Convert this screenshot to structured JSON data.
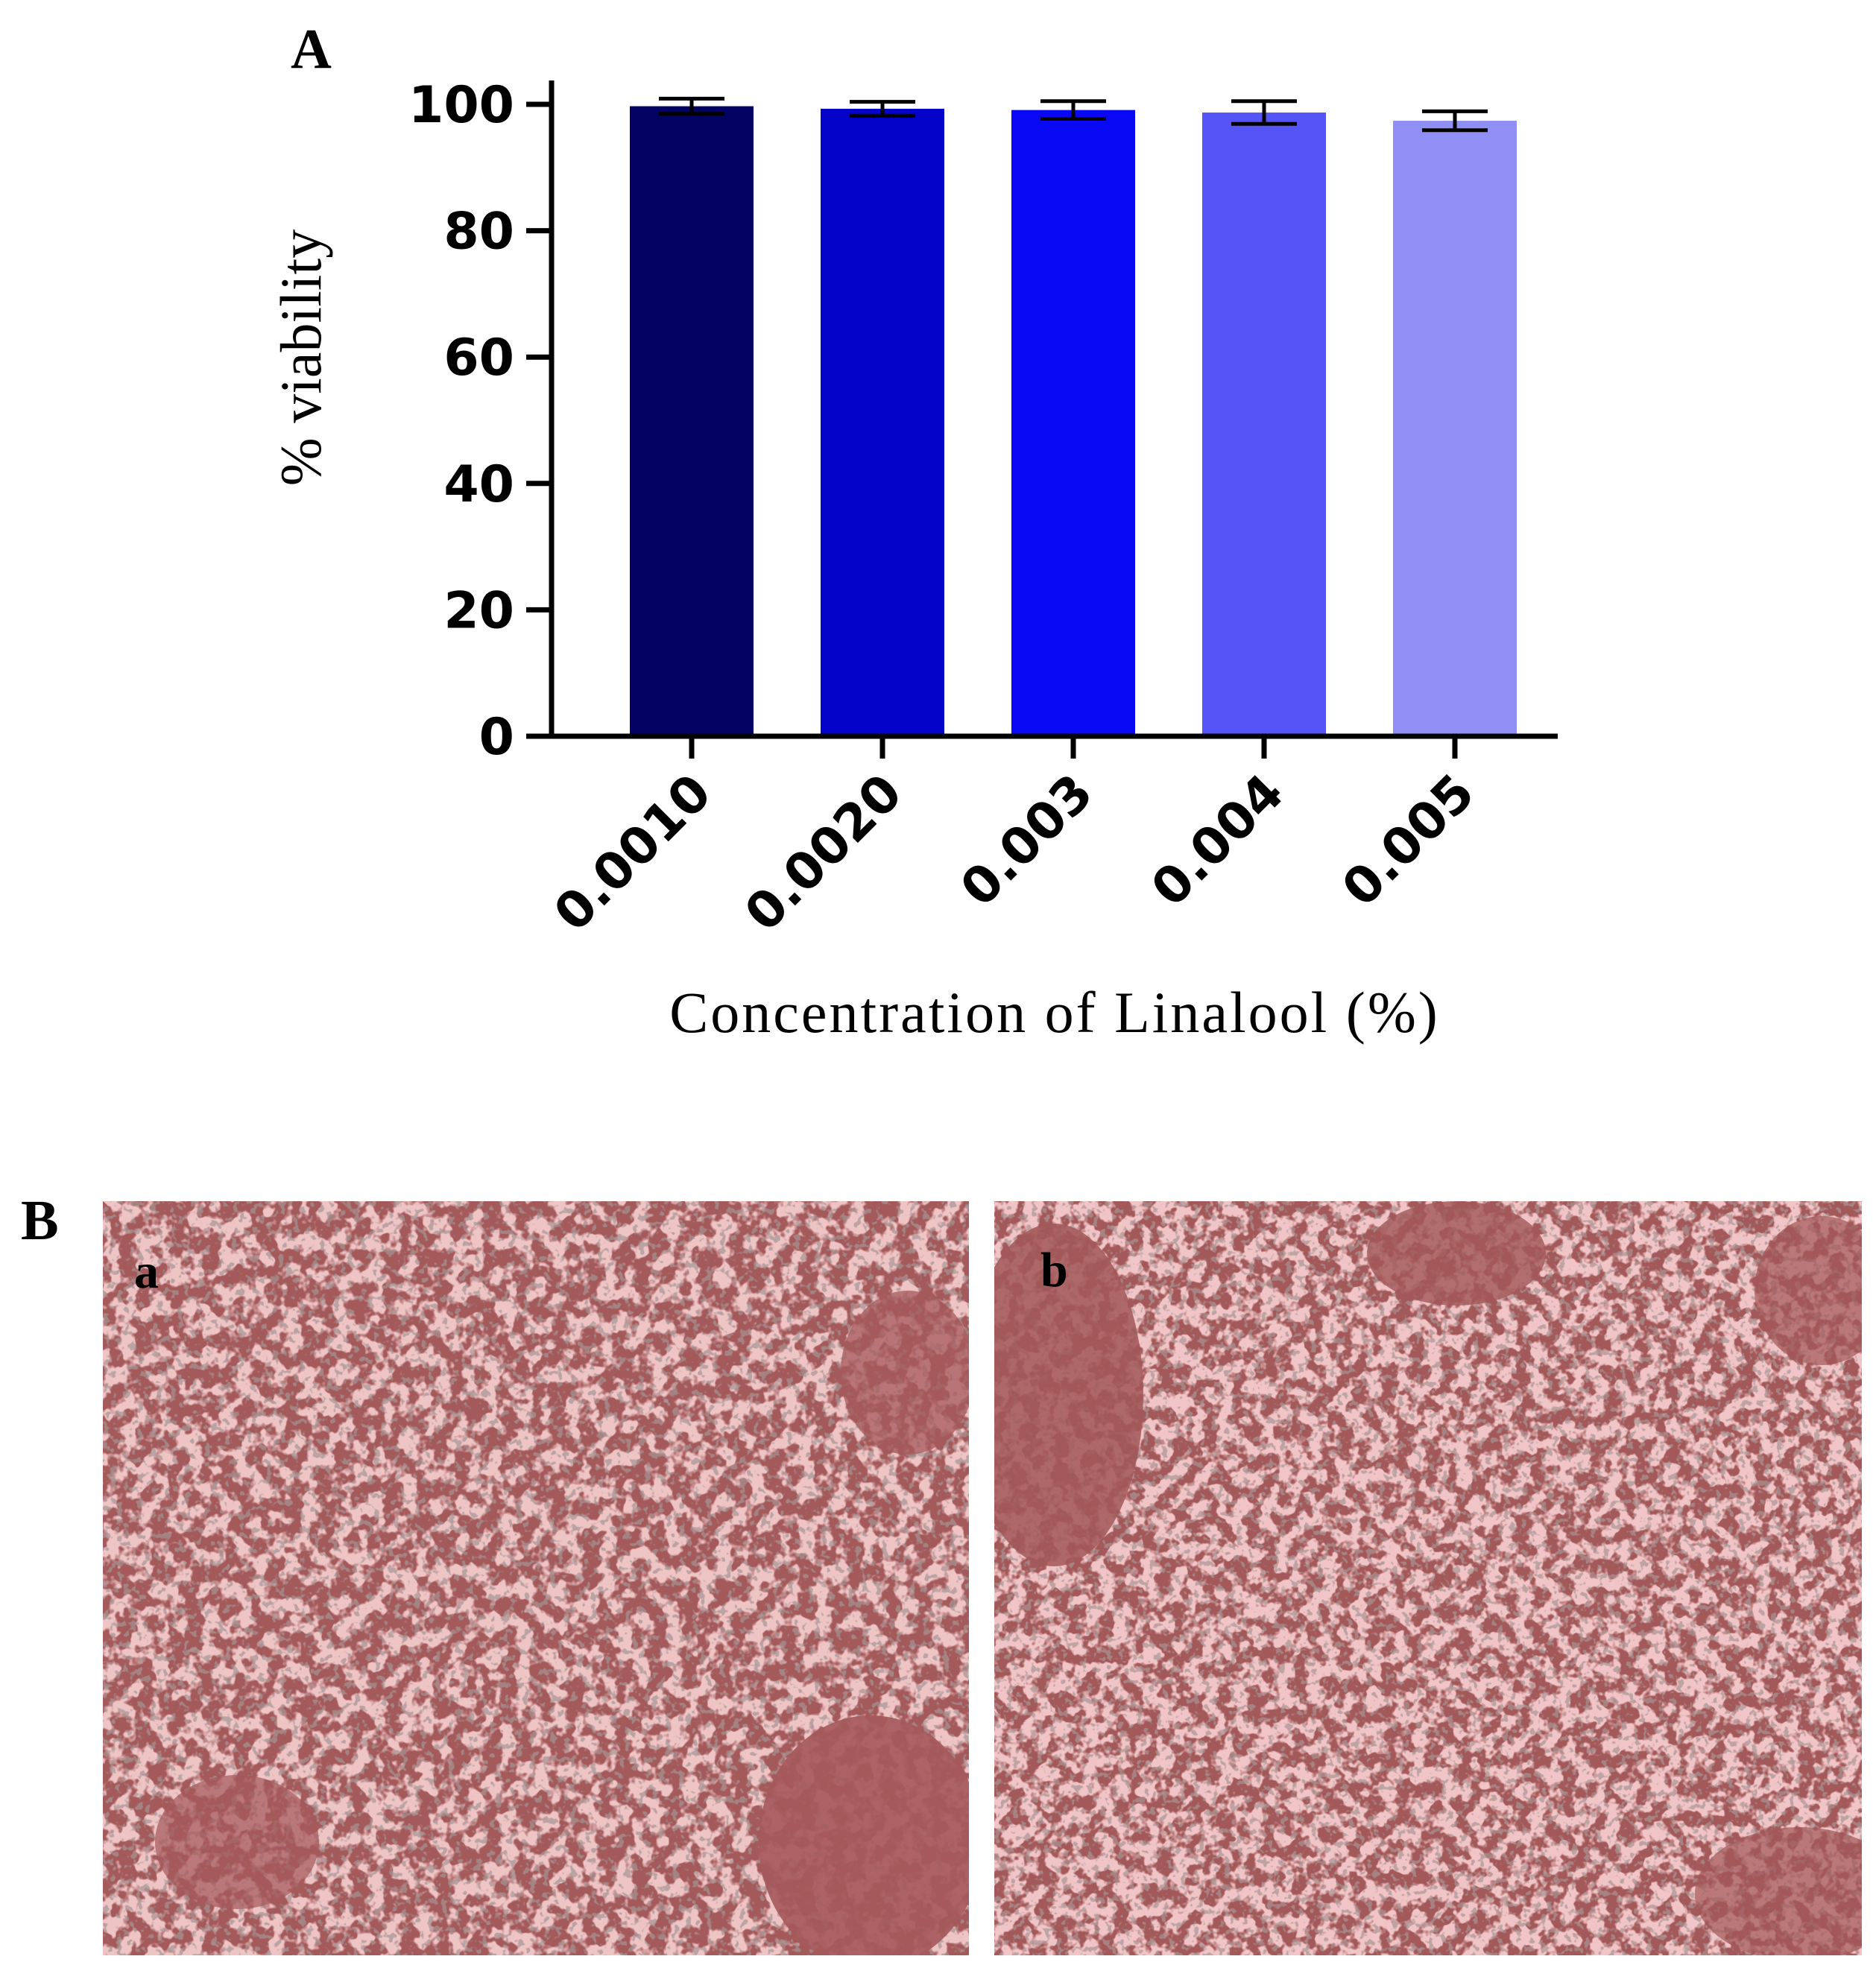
{
  "panels": {
    "a_label": "A",
    "b_label": "B"
  },
  "chart_data": {
    "type": "bar",
    "categories": [
      "0.0010",
      "0.0020",
      "0.003",
      "0.004",
      "0.005"
    ],
    "values": [
      99.7,
      99.3,
      99.1,
      98.7,
      97.4
    ],
    "errors": [
      1.2,
      1.1,
      1.4,
      1.8,
      1.5
    ],
    "bar_colors": [
      "#030363",
      "#0202c8",
      "#0808f5",
      "#5454f7",
      "#8f8ff5"
    ],
    "xlabel": "Concentration of Linalool  (%)",
    "ylabel": "% viability",
    "ylim": [
      0,
      100
    ],
    "yticks": [
      0,
      20,
      40,
      60,
      80,
      100
    ],
    "grid": false
  },
  "micrographs": [
    {
      "label": "a"
    },
    {
      "label": "b"
    }
  ]
}
